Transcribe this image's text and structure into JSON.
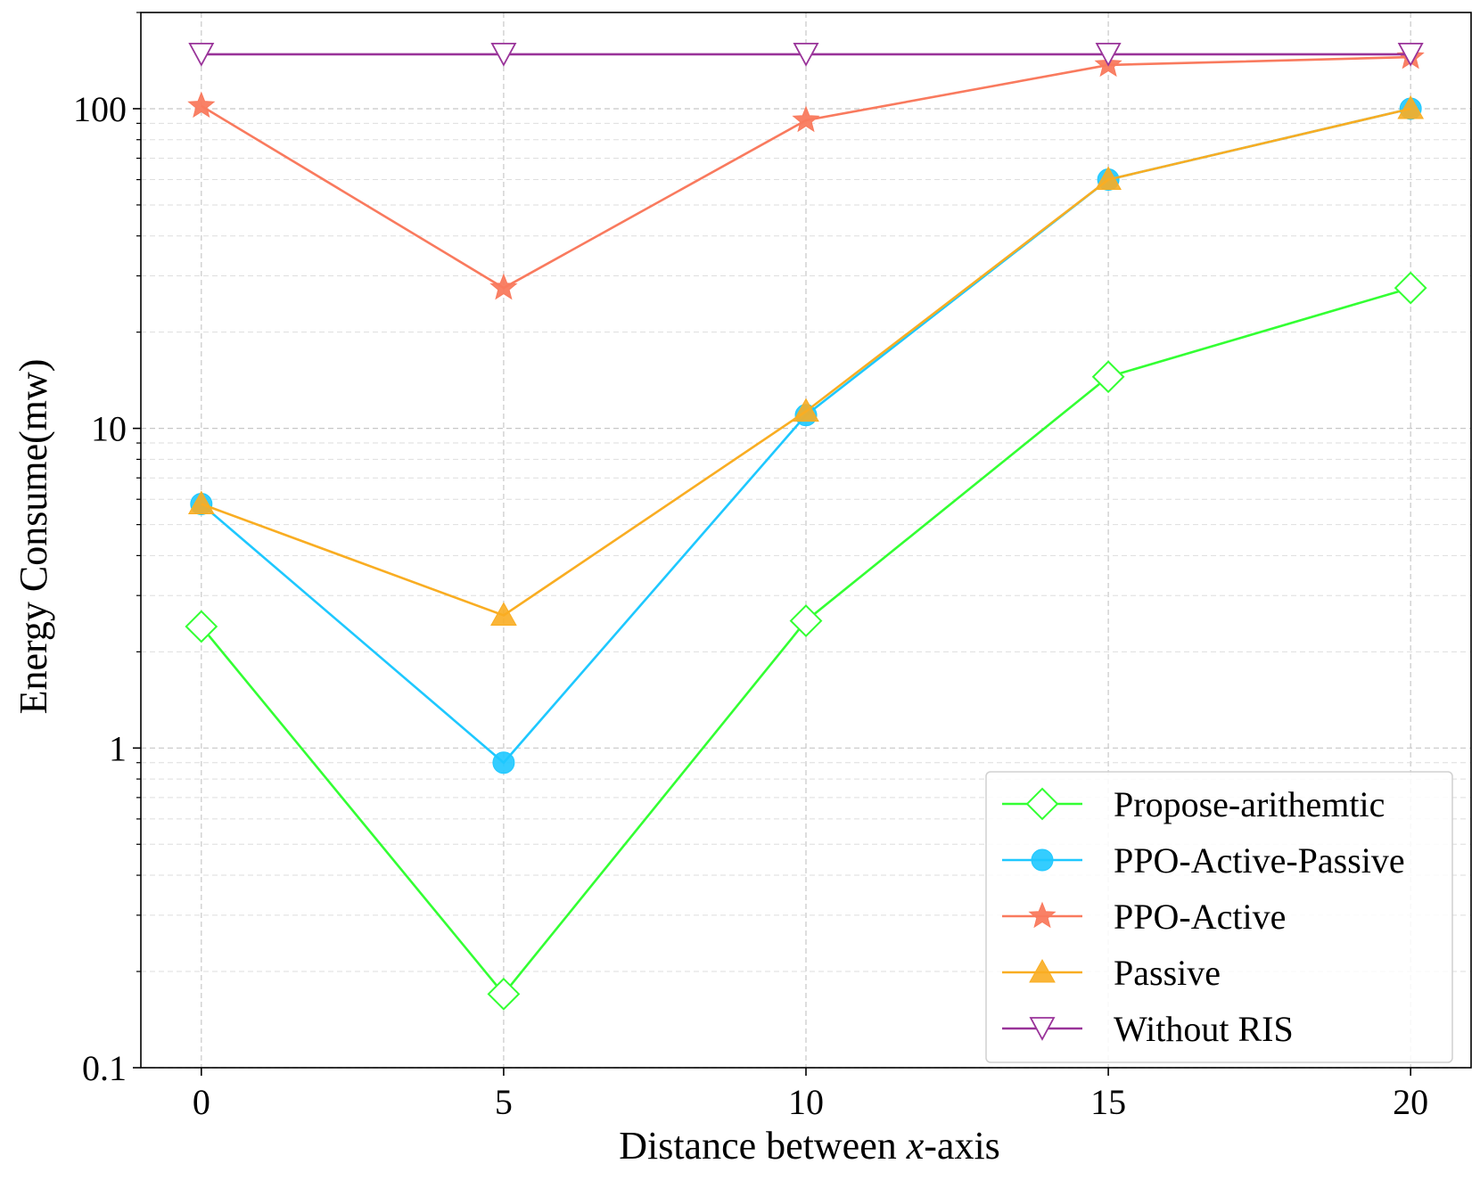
{
  "chart_data": {
    "type": "line",
    "title": "",
    "xlabel_prefix": "Distance between ",
    "xlabel_var": "x",
    "xlabel_suffix": "-axis",
    "ylabel": "Energy Consume(mw)",
    "yscale": "log",
    "xlim": [
      -1,
      21
    ],
    "ylim": [
      0.1,
      200
    ],
    "x": [
      0,
      5,
      10,
      15,
      20
    ],
    "xticks": [
      "0",
      "5",
      "10",
      "15",
      "20"
    ],
    "yticks": [
      {
        "value": 0.1,
        "label": "0.1"
      },
      {
        "value": 1,
        "label": "1"
      },
      {
        "value": 10,
        "label": "10"
      },
      {
        "value": 100,
        "label": "100"
      }
    ],
    "grid": true,
    "legend_position": "lower-right",
    "series": [
      {
        "name": "Propose-arithemtic",
        "color": "#33ff33",
        "marker": "diamond",
        "values": [
          2.4,
          0.17,
          2.5,
          14.5,
          27.5
        ]
      },
      {
        "name": "PPO-Active-Passive",
        "color": "#1ec8ff",
        "marker": "circle",
        "values": [
          5.8,
          0.9,
          11,
          60,
          100
        ]
      },
      {
        "name": "PPO-Active",
        "color": "#f97a5e",
        "marker": "star",
        "values": [
          102,
          27.5,
          92,
          137,
          145
        ]
      },
      {
        "name": "Passive",
        "color": "#f9ad22",
        "marker": "triangle-up",
        "values": [
          5.8,
          2.6,
          11.3,
          60,
          100
        ]
      },
      {
        "name": "Without RIS",
        "color": "#993399",
        "marker": "triangle-down",
        "values": [
          148,
          148,
          148,
          148,
          148
        ]
      }
    ]
  }
}
